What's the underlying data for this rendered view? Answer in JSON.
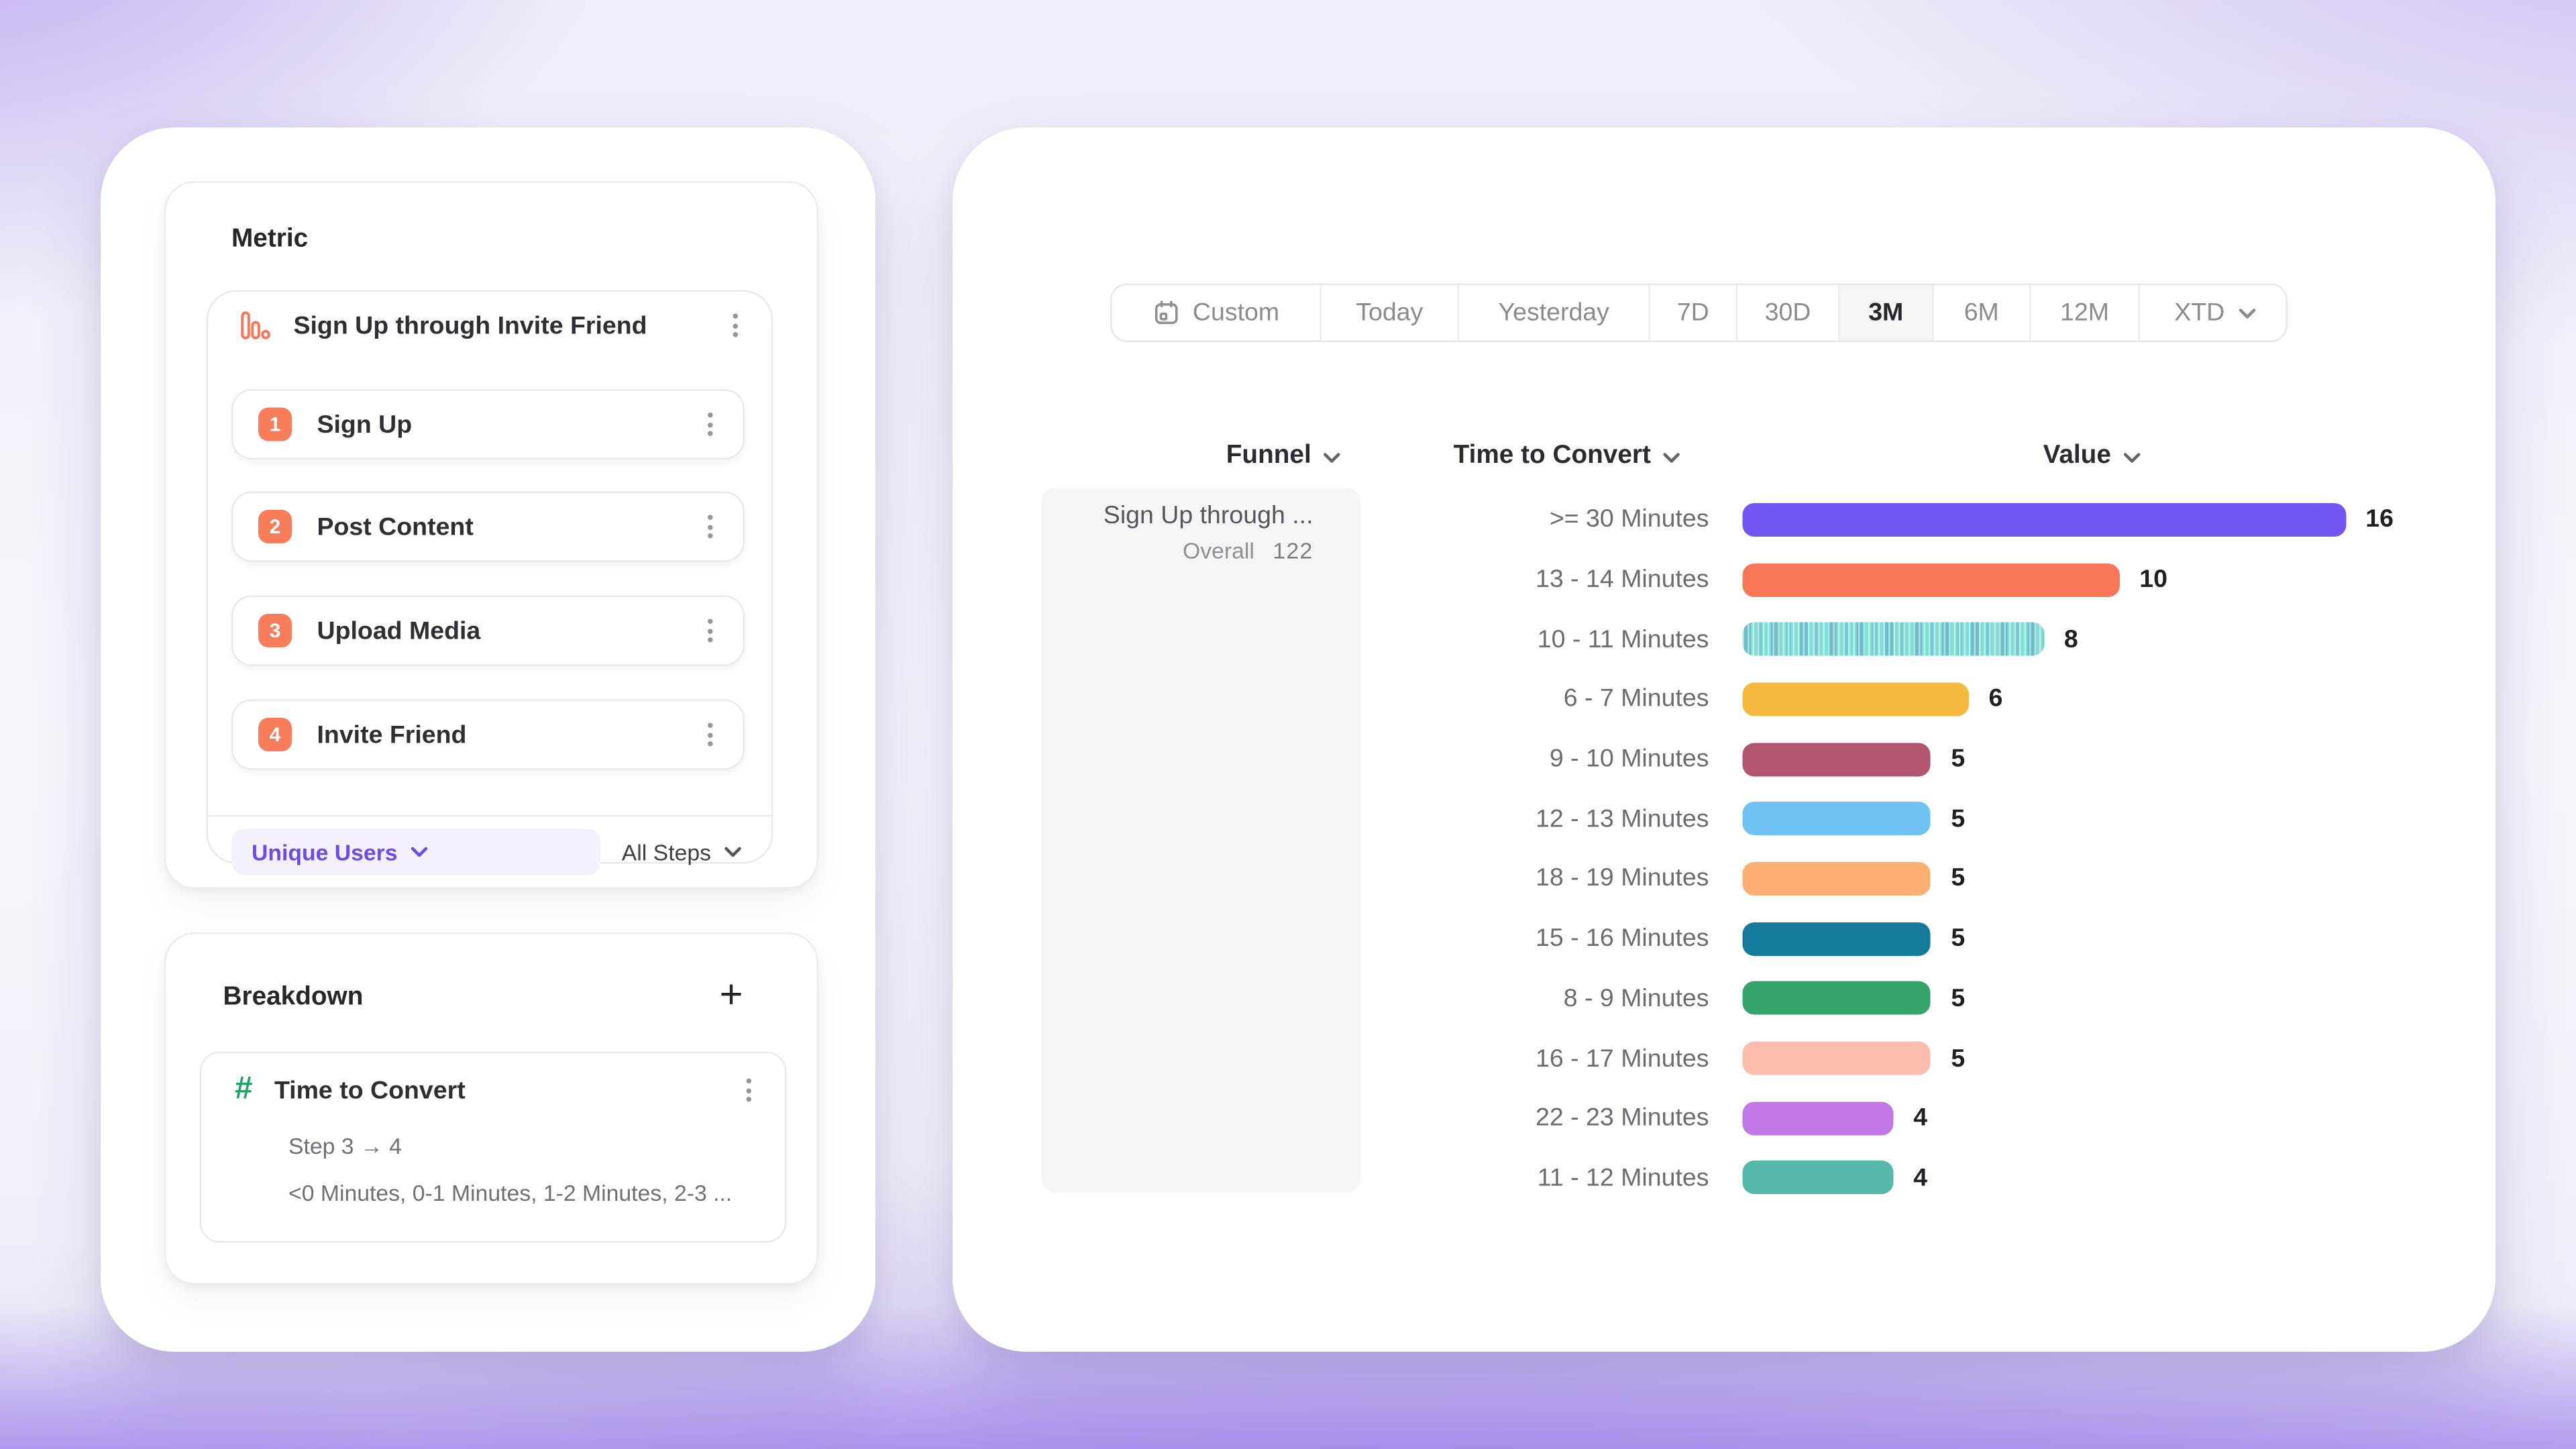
{
  "left_panel": {
    "metric": {
      "heading": "Metric",
      "funnel": {
        "title": "Sign Up through Invite Friend",
        "steps": [
          {
            "number": "1",
            "label": "Sign Up"
          },
          {
            "number": "2",
            "label": "Post Content"
          },
          {
            "number": "3",
            "label": "Upload Media"
          },
          {
            "number": "4",
            "label": "Invite Friend"
          }
        ]
      },
      "measurement": {
        "label": "Unique Users"
      },
      "steps_filter": {
        "label": "All Steps"
      }
    },
    "breakdown": {
      "heading": "Breakdown",
      "property": {
        "title": "Time to Convert",
        "subtitle": "Step 3 → 4",
        "buckets": "<0 Minutes, 0-1 Minutes, 1-2 Minutes, 2-3 ..."
      }
    }
  },
  "right_panel": {
    "date_range": {
      "selected": "3M",
      "options": [
        {
          "label": "Custom",
          "icon": "calendar"
        },
        {
          "label": "Today"
        },
        {
          "label": "Yesterday"
        },
        {
          "label": "7D"
        },
        {
          "label": "30D"
        },
        {
          "label": "3M"
        },
        {
          "label": "6M"
        },
        {
          "label": "12M"
        },
        {
          "label": "XTD",
          "chevron": true
        }
      ]
    },
    "columns": {
      "funnel": "Funnel",
      "breakdown": "Time to Convert",
      "value": "Value"
    },
    "funnel_cell": {
      "title": "Sign Up through ...",
      "overall_label": "Overall",
      "overall_value": "122"
    }
  },
  "chart_data": {
    "type": "bar",
    "orientation": "horizontal",
    "title": "Time to Convert breakdown by Value",
    "xlabel": "Value",
    "ylabel": "Time to Convert",
    "xlim": [
      0,
      16
    ],
    "grid": false,
    "legend": false,
    "categories": [
      ">= 30 Minutes",
      "13 - 14 Minutes",
      "10 - 11 Minutes",
      "6 - 7 Minutes",
      "9 - 10 Minutes",
      "12 - 13 Minutes",
      "18 - 19 Minutes",
      "15 - 16 Minutes",
      "8 - 9 Minutes",
      "16 - 17 Minutes",
      "22 - 23 Minutes",
      "11 - 12 Minutes"
    ],
    "values": [
      16,
      10,
      8,
      6,
      5,
      5,
      5,
      5,
      5,
      5,
      4,
      4
    ],
    "colors": [
      "#7355F1",
      "#F97659",
      "#7FDED8",
      "#F6B93F",
      "#B25670",
      "#70C2F4",
      "#FCAE73",
      "#14799B",
      "#36A36D",
      "#FBBCAD",
      "#C178E7",
      "#56B8AB"
    ],
    "patterns": [
      "solid",
      "solid",
      "striped",
      "solid",
      "solid",
      "solid",
      "solid",
      "solid",
      "solid",
      "solid",
      "solid",
      "solid"
    ]
  },
  "colors": {
    "accent_orange": "#F97C5B",
    "accent_purple": "#6C4BE8",
    "accent_green": "#1EA567",
    "selected_segment_bg": "#F5F5F6",
    "funnel_cell_bg": "#F5F5F6"
  }
}
